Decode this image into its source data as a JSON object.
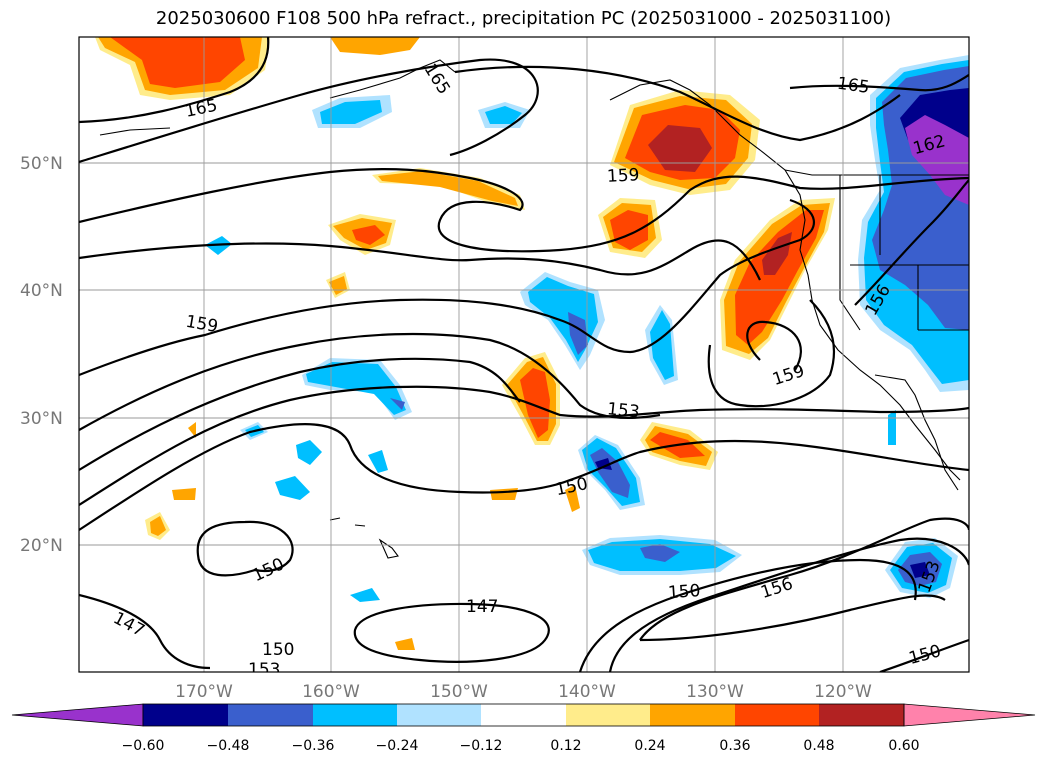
{
  "title": "2025030600 F108 500 hPa refract., precipitation PC (2025031000 - 2025031100)",
  "map": {
    "lat_labels": [
      "50°N",
      "40°N",
      "30°N",
      "20°N"
    ],
    "lon_labels": [
      "170°W",
      "160°W",
      "150°W",
      "140°W",
      "130°W",
      "120°W"
    ],
    "contour_labels": [
      "165",
      "165",
      "165",
      "162",
      "159",
      "159",
      "159",
      "156",
      "156",
      "153",
      "153",
      "150",
      "150",
      "150",
      "150",
      "150",
      "147",
      "147"
    ]
  },
  "colorbar": {
    "ticks": [
      "−0.60",
      "−0.48",
      "−0.36",
      "−0.24",
      "−0.12",
      "0.12",
      "0.24",
      "0.36",
      "0.48",
      "0.60"
    ],
    "colors": [
      "#9932CC",
      "#00008B",
      "#3A5FCD",
      "#00BFFF",
      "#B0E2FF",
      "#FFFFFF",
      "#FFEC8B",
      "#FFA500",
      "#FF4500",
      "#B22222",
      "#FF82AB"
    ]
  }
}
